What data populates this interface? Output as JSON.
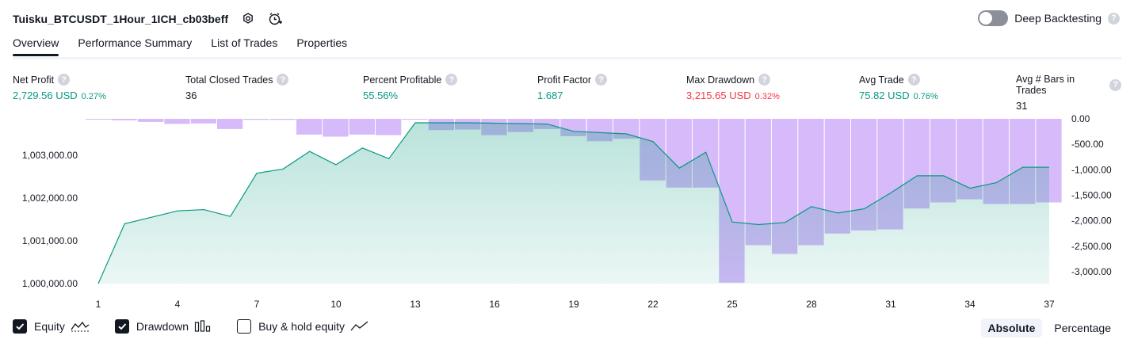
{
  "header": {
    "title": "Tuisku_BTCUSDT_1Hour_1ICH_cb03beff",
    "settings_icon": "gear-icon",
    "alert_icon": "add-alert-icon"
  },
  "deep_backtesting": {
    "label": "Deep Backtesting",
    "enabled": false,
    "help": "?"
  },
  "tabs": [
    {
      "label": "Overview",
      "active": true
    },
    {
      "label": "Performance Summary",
      "active": false
    },
    {
      "label": "List of Trades",
      "active": false
    },
    {
      "label": "Properties",
      "active": false
    }
  ],
  "metrics": [
    {
      "label": "Net Profit",
      "value": "2,729.56 USD",
      "pct": "0.27%",
      "color": "#089981"
    },
    {
      "label": "Total Closed Trades",
      "value": "36",
      "pct": "",
      "color": "#131722"
    },
    {
      "label": "Percent Profitable",
      "value": "55.56%",
      "pct": "",
      "color": "#089981"
    },
    {
      "label": "Profit Factor",
      "value": "1.687",
      "pct": "",
      "color": "#089981"
    },
    {
      "label": "Max Drawdown",
      "value": "3,215.65 USD",
      "pct": "0.32%",
      "color": "#f23645"
    },
    {
      "label": "Avg Trade",
      "value": "75.82 USD",
      "pct": "0.76%",
      "color": "#089981"
    },
    {
      "label": "Avg # Bars in Trades",
      "value": "31",
      "pct": "",
      "color": "#131722"
    }
  ],
  "chart_data": {
    "type": "area",
    "x_ticks": [
      "1",
      "4",
      "7",
      "10",
      "13",
      "16",
      "19",
      "22",
      "25",
      "28",
      "31",
      "34",
      "37"
    ],
    "left_axis": {
      "ticks": [
        "1,003,000.00",
        "1,002,000.00",
        "1,001,000.00",
        "1,000,000.00"
      ],
      "tick_values": [
        1003000,
        1002000,
        1001000,
        1000000
      ]
    },
    "right_axis": {
      "ticks": [
        "0.00",
        "-500.00",
        "-1,000.00",
        "-1,500.00",
        "-2,000.00",
        "-2,500.00",
        "-3,000.00"
      ],
      "tick_values": [
        0,
        -500,
        -1000,
        -1500,
        -2000,
        -2500,
        -3000
      ]
    },
    "series": [
      {
        "name": "Equity",
        "kind": "area",
        "color": "#089981",
        "x": [
          1,
          2,
          3,
          4,
          5,
          6,
          7,
          8,
          9,
          10,
          11,
          12,
          13,
          14,
          15,
          16,
          17,
          18,
          19,
          20,
          21,
          22,
          23,
          24,
          25,
          26,
          27,
          28,
          29,
          30,
          31,
          32,
          33,
          34,
          35,
          36,
          37
        ],
        "values": [
          1000000,
          1001400,
          1001550,
          1001700,
          1001730,
          1001570,
          1002580,
          1002680,
          1003090,
          1002780,
          1003170,
          1002920,
          1003760,
          1003760,
          1003760,
          1003750,
          1003740,
          1003730,
          1003560,
          1003530,
          1003500,
          1003320,
          1002700,
          1003070,
          1001440,
          1001380,
          1001430,
          1001800,
          1001650,
          1001750,
          1002120,
          1002520,
          1002520,
          1002230,
          1002360,
          1002720,
          1002720
        ]
      },
      {
        "name": "Drawdown",
        "kind": "bar",
        "color": "#c9a3f8",
        "x": [
          1,
          2,
          3,
          4,
          5,
          6,
          7,
          8,
          9,
          10,
          11,
          12,
          13,
          14,
          15,
          16,
          17,
          18,
          19,
          20,
          21,
          22,
          23,
          24,
          25,
          26,
          27,
          28,
          29,
          30,
          31,
          32,
          33,
          34,
          35,
          36,
          37
        ],
        "values": [
          0,
          -30,
          -60,
          -100,
          -90,
          -200,
          -20,
          -20,
          -310,
          -350,
          -310,
          -320,
          -10,
          -220,
          -210,
          -320,
          -260,
          -200,
          -340,
          -440,
          -390,
          -1210,
          -1350,
          -1350,
          -3215,
          -2480,
          -2650,
          -2480,
          -2250,
          -2190,
          -2170,
          -1760,
          -1640,
          -1580,
          -1670,
          -1670,
          -1640
        ]
      },
      {
        "name": "Buy & hold equity",
        "kind": "line",
        "visible": false,
        "values": []
      }
    ],
    "legend": [
      {
        "label": "Equity",
        "checked": true,
        "icon": "area-chart-icon"
      },
      {
        "label": "Drawdown",
        "checked": true,
        "icon": "bar-chart-icon"
      },
      {
        "label": "Buy & hold equity",
        "checked": false,
        "icon": "line-chart-icon"
      }
    ]
  },
  "view_modes": [
    {
      "label": "Absolute",
      "active": true
    },
    {
      "label": "Percentage",
      "active": false
    }
  ]
}
